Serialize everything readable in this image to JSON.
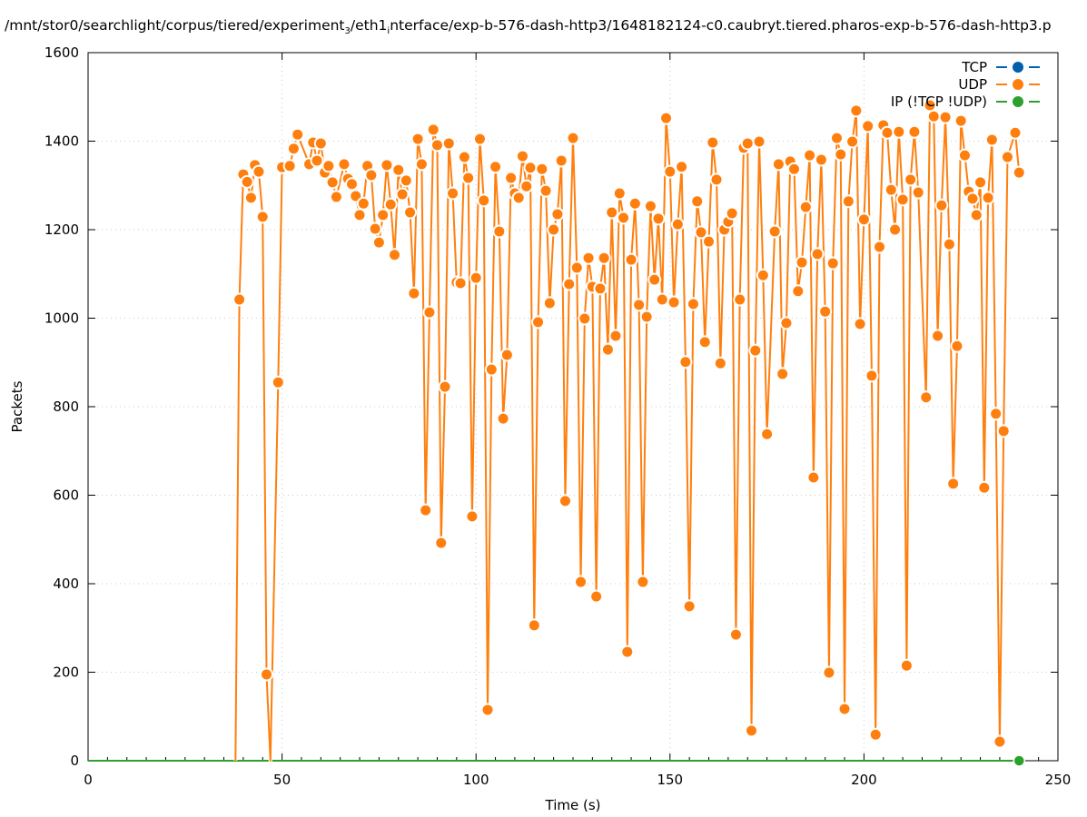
{
  "chart_data": {
    "type": "line",
    "title_parts": [
      "/mnt/stor0/searchlight/corpus/tiered/experiment",
      "3",
      "/eth1",
      "i",
      "nterface/exp-b-576-dash-http3/1648182124-c0.caubryt.tiered.pharos-exp-b-576-dash-http3.p"
    ],
    "xlabel": "Time (s)",
    "ylabel": "Packets",
    "xlim": [
      0,
      250
    ],
    "ylim": [
      0,
      1600
    ],
    "xticks": [
      0,
      50,
      100,
      150,
      200,
      250
    ],
    "yticks": [
      0,
      200,
      400,
      600,
      800,
      1000,
      1200,
      1400,
      1600
    ],
    "grid": true,
    "legend_position": "top-right",
    "colors": {
      "TCP": "#0060ad",
      "UDP": "#ff7f0e",
      "IP": "#2ca02c"
    },
    "series": [
      {
        "name": "TCP",
        "x": [],
        "values": []
      },
      {
        "name": "UDP",
        "x": [
          38,
          39,
          40,
          41,
          42,
          43,
          44,
          45,
          46,
          47,
          49,
          50,
          52,
          53,
          54,
          57,
          58,
          59,
          60,
          61,
          62,
          63,
          64,
          66,
          67,
          68,
          69,
          70,
          71,
          72,
          73,
          74,
          75,
          76,
          77,
          78,
          79,
          80,
          81,
          82,
          83,
          84,
          85,
          86,
          87,
          88,
          89,
          90,
          91,
          92,
          93,
          94,
          95,
          96,
          97,
          98,
          99,
          100,
          101,
          102,
          103,
          104,
          105,
          106,
          107,
          108,
          109,
          110,
          111,
          112,
          113,
          114,
          115,
          116,
          117,
          118,
          119,
          120,
          121,
          122,
          123,
          124,
          125,
          126,
          127,
          128,
          129,
          130,
          131,
          132,
          133,
          134,
          135,
          136,
          137,
          138,
          139,
          140,
          141,
          142,
          143,
          144,
          145,
          146,
          147,
          148,
          149,
          150,
          151,
          152,
          153,
          154,
          155,
          156,
          157,
          158,
          159,
          160,
          161,
          162,
          163,
          164,
          165,
          166,
          167,
          168,
          169,
          170,
          171,
          172,
          173,
          174,
          175,
          177,
          178,
          179,
          180,
          181,
          182,
          183,
          184,
          185,
          186,
          187,
          188,
          189,
          190,
          191,
          192,
          193,
          194,
          195,
          196,
          197,
          198,
          199,
          200,
          201,
          202,
          203,
          204,
          205,
          206,
          207,
          208,
          209,
          210,
          211,
          212,
          213,
          214,
          216,
          217,
          218,
          219,
          220,
          221,
          222,
          223,
          224,
          225,
          226,
          227,
          228,
          229,
          230,
          231,
          232,
          233,
          234,
          235,
          236,
          237,
          239,
          240
        ],
        "values": [
          0,
          1042,
          1325,
          1308,
          1272,
          1346,
          1331,
          1229,
          195,
          0,
          855,
          1341,
          1344,
          1383,
          1415,
          1348,
          1397,
          1356,
          1395,
          1329,
          1344,
          1307,
          1274,
          1348,
          1315,
          1303,
          1276,
          1233,
          1259,
          1344,
          1323,
          1202,
          1171,
          1233,
          1346,
          1257,
          1143,
          1335,
          1280,
          1311,
          1239,
          1056,
          1405,
          1348,
          566,
          1013,
          1426,
          1391,
          492,
          845,
          1395,
          1282,
          1081,
          1079,
          1364,
          1317,
          552,
          1091,
          1405,
          1266,
          115,
          884,
          1342,
          1196,
          773,
          917,
          1317,
          1282,
          1272,
          1366,
          1298,
          1340,
          306,
          991,
          1337,
          1288,
          1034,
          1200,
          1235,
          1356,
          587,
          1077,
          1407,
          1114,
          404,
          999,
          1136,
          1071,
          371,
          1067,
          1136,
          929,
          1239,
          960,
          1282,
          1227,
          246,
          1132,
          1259,
          1030,
          404,
          1003,
          1253,
          1087,
          1225,
          1042,
          1452,
          1331,
          1036,
          1212,
          1342,
          901,
          349,
          1032,
          1264,
          1194,
          946,
          1173,
          1397,
          1313,
          898,
          1200,
          1218,
          1237,
          285,
          1042,
          1385,
          1395,
          68,
          927,
          1399,
          1097,
          738,
          1196,
          1348,
          874,
          989,
          1354,
          1337,
          1061,
          1126,
          1251,
          1368,
          640,
          1145,
          1358,
          1015,
          199,
          1124,
          1407,
          1370,
          117,
          1264,
          1399,
          1469,
          987,
          1223,
          1434,
          870,
          59,
          1161,
          1436,
          1419,
          1290,
          1200,
          1421,
          1268,
          215,
          1313,
          1421,
          1284,
          821,
          1481,
          1456,
          960,
          1255,
          1454,
          1167,
          626,
          937,
          1446,
          1368,
          1286,
          1270,
          1233,
          1307,
          617,
          1272,
          1403,
          784,
          43,
          745,
          1364,
          1419,
          1329
        ]
      },
      {
        "name": "IP (!TCP  !UDP)",
        "x": [
          0,
          240
        ],
        "values": [
          0,
          0
        ]
      }
    ]
  }
}
